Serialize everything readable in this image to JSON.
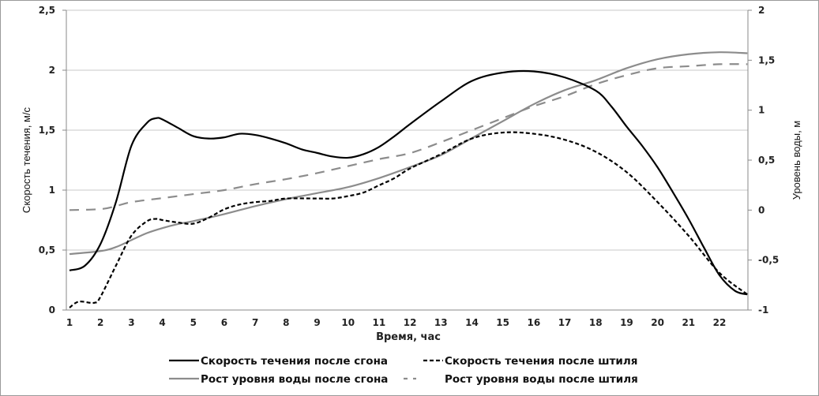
{
  "chart_data": {
    "type": "line",
    "xlabel": "Время, час",
    "ylabel": "Скорость течения, м/с",
    "y2label": "Уровень воды, м",
    "xlim": [
      1,
      22.9
    ],
    "ylim": [
      0,
      2.5
    ],
    "y2lim": [
      -1,
      2
    ],
    "xticks": [
      "1",
      "2",
      "3",
      "4",
      "5",
      "6",
      "7",
      "8",
      "9",
      "10",
      "11",
      "12",
      "13",
      "14",
      "15",
      "16",
      "17",
      "18",
      "19",
      "20",
      "21",
      "22"
    ],
    "yticks": [
      "0",
      "0,5",
      "1",
      "1,5",
      "2",
      "2,5"
    ],
    "y2ticks": [
      "-1",
      "-0,5",
      "0",
      "0,5",
      "1",
      "1,5",
      "2"
    ],
    "grid": "horizontal",
    "legend_placement": "bottom",
    "series": [
      {
        "name": "Скорость течения после сгона",
        "axis": "left",
        "color": "#000000",
        "dash": "solid",
        "x": [
          1,
          1.5,
          2,
          2.5,
          3,
          3.5,
          3.8,
          4,
          4.5,
          5,
          5.5,
          6,
          6.5,
          7,
          7.5,
          8,
          8.5,
          9,
          9.5,
          10,
          10.5,
          11,
          11.5,
          12,
          13,
          14,
          15,
          16,
          17,
          18,
          18.5,
          19,
          19.5,
          20,
          20.5,
          21,
          21.5,
          22,
          22.5,
          22.9
        ],
        "y": [
          0.33,
          0.37,
          0.55,
          0.9,
          1.37,
          1.56,
          1.6,
          1.59,
          1.52,
          1.45,
          1.43,
          1.44,
          1.47,
          1.46,
          1.43,
          1.39,
          1.34,
          1.31,
          1.28,
          1.27,
          1.3,
          1.36,
          1.45,
          1.55,
          1.74,
          1.91,
          1.98,
          1.99,
          1.94,
          1.83,
          1.7,
          1.53,
          1.37,
          1.19,
          0.98,
          0.76,
          0.52,
          0.29,
          0.16,
          0.13
        ]
      },
      {
        "name": "Скорость течения после штиля",
        "axis": "left",
        "color": "#000000",
        "dash": "short",
        "x": [
          1,
          1.3,
          1.8,
          2,
          2.5,
          3,
          3.5,
          3.8,
          4,
          4.5,
          5,
          5.5,
          6,
          6.5,
          7,
          7.5,
          8,
          9,
          9.5,
          10,
          10.5,
          11,
          11.5,
          12,
          13,
          14,
          15,
          16,
          17,
          18,
          19,
          20,
          21,
          22,
          22.9
        ],
        "y": [
          0.02,
          0.07,
          0.06,
          0.11,
          0.37,
          0.62,
          0.74,
          0.76,
          0.75,
          0.73,
          0.72,
          0.77,
          0.84,
          0.88,
          0.9,
          0.91,
          0.93,
          0.93,
          0.93,
          0.95,
          0.98,
          1.04,
          1.1,
          1.18,
          1.3,
          1.43,
          1.48,
          1.47,
          1.42,
          1.32,
          1.15,
          0.9,
          0.62,
          0.31,
          0.13
        ]
      },
      {
        "name": "Рост уровня воды после сгона",
        "axis": "right",
        "color": "#8c8c8c",
        "dash": "solid",
        "x": [
          1,
          2,
          2.5,
          3,
          3.5,
          4,
          4.5,
          5,
          6,
          7,
          8,
          9,
          10,
          11,
          12,
          13,
          14,
          15,
          16,
          17,
          18,
          19,
          20,
          21,
          22,
          22.9
        ],
        "y": [
          -0.44,
          -0.41,
          -0.37,
          -0.3,
          -0.23,
          -0.18,
          -0.14,
          -0.11,
          -0.04,
          0.04,
          0.11,
          0.17,
          0.23,
          0.32,
          0.43,
          0.55,
          0.72,
          0.89,
          1.06,
          1.2,
          1.3,
          1.42,
          1.51,
          1.56,
          1.58,
          1.57
        ]
      },
      {
        "name": "Рост уровня воды после штиля",
        "axis": "right",
        "color": "#8c8c8c",
        "dash": "long",
        "x": [
          1,
          2,
          2.5,
          3,
          4,
          5,
          6,
          7,
          8,
          9,
          10,
          11,
          12,
          13,
          14,
          15,
          16,
          17,
          18,
          19,
          20,
          21,
          22,
          22.9
        ],
        "y": [
          0,
          0.01,
          0.04,
          0.08,
          0.12,
          0.16,
          0.2,
          0.26,
          0.31,
          0.37,
          0.44,
          0.51,
          0.57,
          0.68,
          0.8,
          0.92,
          1.04,
          1.14,
          1.26,
          1.35,
          1.42,
          1.44,
          1.46,
          1.46
        ]
      }
    ]
  }
}
